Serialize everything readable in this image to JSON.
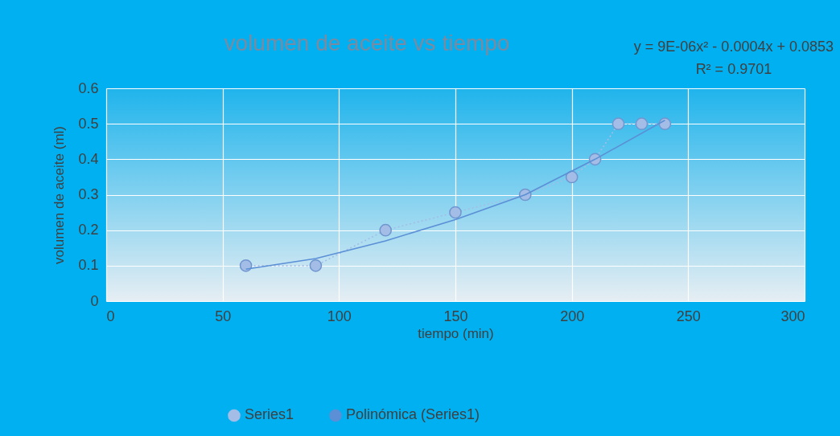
{
  "chart_data": {
    "type": "line",
    "title": "volumen de aceite vs tiempo",
    "xlabel": "tiempo (min)",
    "ylabel": "volumen de aceite (ml)",
    "xlim": [
      0,
      300
    ],
    "xticks": [
      0,
      50,
      100,
      150,
      200,
      250,
      300
    ],
    "ylim": [
      0,
      0.6
    ],
    "yticks": [
      0,
      0.1,
      0.2,
      0.3,
      0.4,
      0.5,
      0.6
    ],
    "grid": true,
    "legend": "bottom",
    "annotations": [
      "y = 9E-06x² - 0.0004x + 0.0853",
      "R² = 0.9701"
    ],
    "series": [
      {
        "name": "Series1",
        "color": "#a4bde6",
        "marker": "circle",
        "line_style": "dotted",
        "x": [
          60,
          90,
          120,
          150,
          180,
          200,
          210,
          220,
          230,
          240
        ],
        "values": [
          0.1,
          0.1,
          0.2,
          0.25,
          0.3,
          0.35,
          0.4,
          0.5,
          0.5,
          0.5
        ]
      },
      {
        "name": "Polinómica (Series1)",
        "color": "#5b8fd6",
        "marker": "none",
        "line_style": "solid",
        "x": [
          60,
          90,
          120,
          150,
          180,
          210,
          240
        ],
        "values": [
          0.09,
          0.12,
          0.17,
          0.23,
          0.3,
          0.4,
          0.51
        ]
      }
    ]
  }
}
